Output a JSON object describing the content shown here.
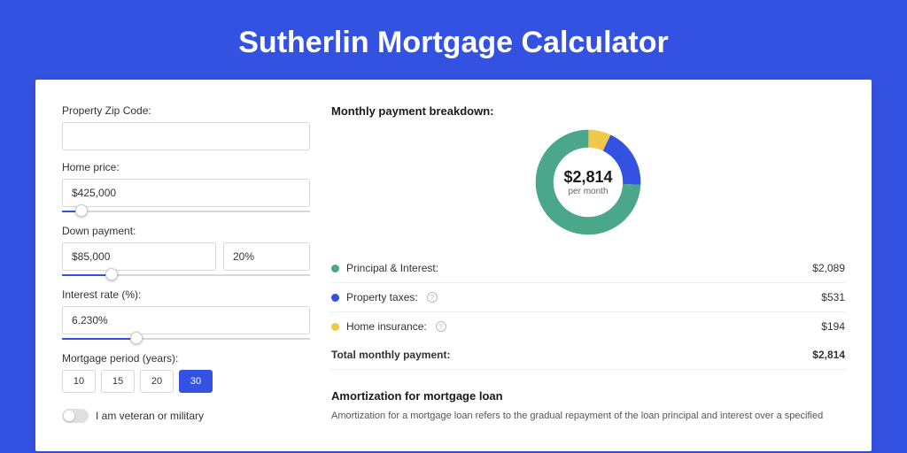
{
  "title": "Sutherlin Mortgage Calculator",
  "colors": {
    "page_bg": "#3452e1",
    "card_bg": "#ffffff",
    "accent": "#3452e1",
    "text": "#333333",
    "series_principal": "#4aa789",
    "series_taxes": "#3452e1",
    "series_insurance": "#f0c94a"
  },
  "form": {
    "zip": {
      "label": "Property Zip Code:",
      "value": ""
    },
    "home_price": {
      "label": "Home price:",
      "value": "$425,000",
      "slider_pct": 8
    },
    "down_payment": {
      "label": "Down payment:",
      "amount": "$85,000",
      "pct": "20%",
      "slider_pct": 20
    },
    "interest_rate": {
      "label": "Interest rate (%):",
      "value": "6.230%",
      "slider_pct": 30
    },
    "mortgage_period": {
      "label": "Mortgage period (years):",
      "options": [
        "10",
        "15",
        "20",
        "30"
      ],
      "selected": "30"
    },
    "veteran": {
      "label": "I am veteran or military",
      "checked": false
    }
  },
  "breakdown": {
    "title": "Monthly payment breakdown:",
    "center_amount": "$2,814",
    "center_sub": "per month",
    "items": [
      {
        "label": "Principal & Interest:",
        "value": "$2,089",
        "color": "#4aa789",
        "pct": 74.2,
        "info": false
      },
      {
        "label": "Property taxes:",
        "value": "$531",
        "color": "#3452e1",
        "pct": 18.9,
        "info": true
      },
      {
        "label": "Home insurance:",
        "value": "$194",
        "color": "#f0c94a",
        "pct": 6.9,
        "info": true
      }
    ],
    "total": {
      "label": "Total monthly payment:",
      "value": "$2,814"
    }
  },
  "amortization": {
    "title": "Amortization for mortgage loan",
    "text": "Amortization for a mortgage loan refers to the gradual repayment of the loan principal and interest over a specified"
  }
}
